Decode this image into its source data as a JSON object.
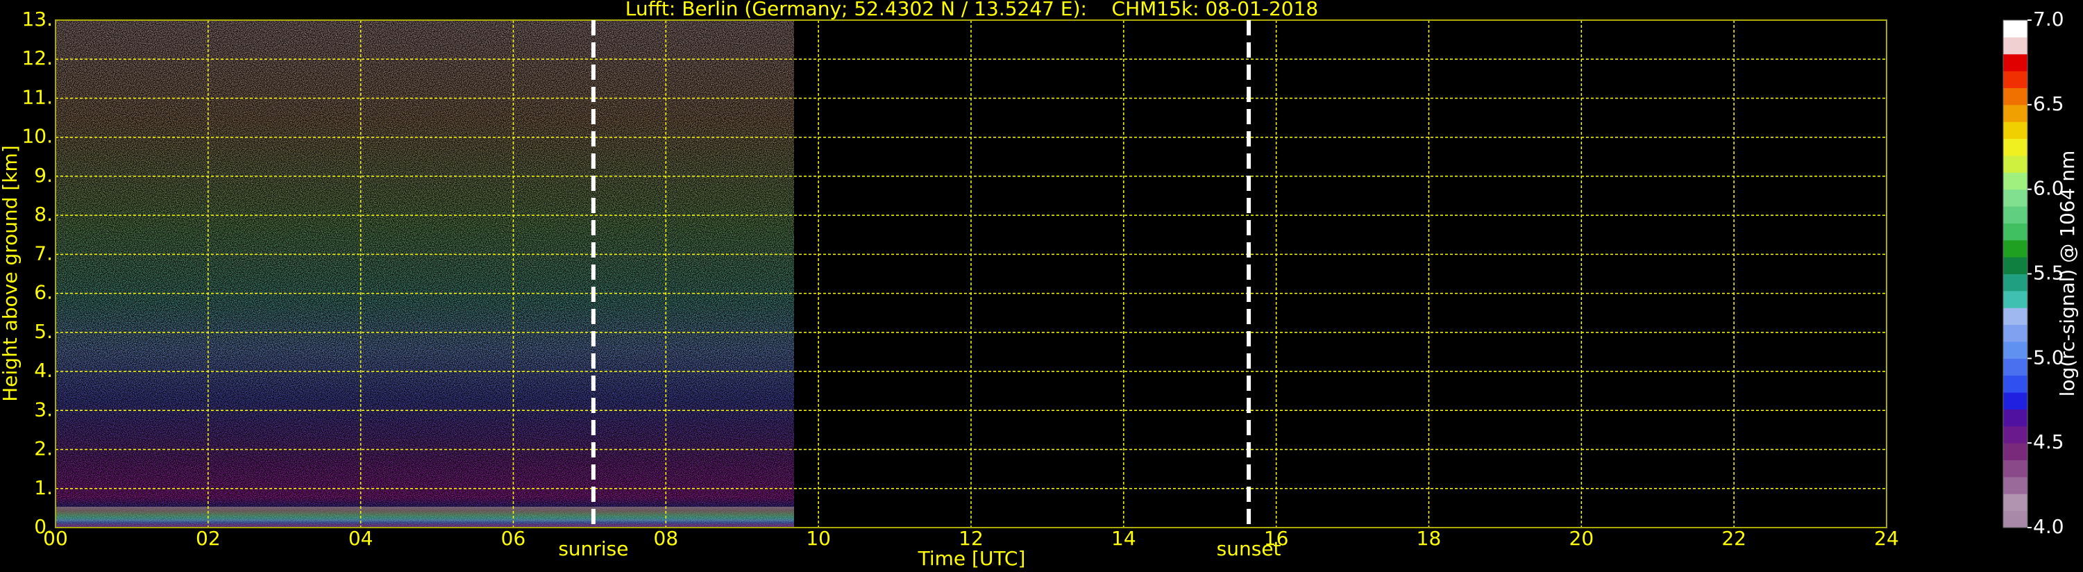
{
  "chart_data": {
    "type": "heatmap",
    "title": "Lufft: Berlin (Germany; 52.4302 N / 13.5247 E):    CHM15k: 08-01-2018",
    "xlabel": "Time [UTC]",
    "ylabel": "Height above ground [km]",
    "xlim": [
      0,
      24
    ],
    "xticks": [
      {
        "value": 0,
        "label": "00"
      },
      {
        "value": 2,
        "label": "02"
      },
      {
        "value": 4,
        "label": "04"
      },
      {
        "value": 6,
        "label": "06"
      },
      {
        "value": 8,
        "label": "08"
      },
      10,
      12,
      14,
      16,
      18,
      20,
      22,
      24
    ],
    "ylim": [
      0,
      13
    ],
    "yticks": [
      {
        "value": 0,
        "label": "0."
      },
      {
        "value": 1,
        "label": "1."
      },
      {
        "value": 2,
        "label": "2."
      },
      {
        "value": 3,
        "label": "3."
      },
      {
        "value": 4,
        "label": "4."
      },
      {
        "value": 5,
        "label": "5."
      },
      {
        "value": 6,
        "label": "6."
      },
      {
        "value": 7,
        "label": "7."
      },
      {
        "value": 8,
        "label": "8."
      },
      {
        "value": 9,
        "label": "9."
      },
      {
        "value": 10,
        "label": "10."
      },
      {
        "value": 11,
        "label": "11."
      },
      {
        "value": 12,
        "label": "12."
      },
      {
        "value": 13,
        "label": "13."
      }
    ],
    "grid": true,
    "data_range": [
      0,
      9.68
    ],
    "annotations": [
      {
        "text": "sunrise",
        "x": 7.05
      },
      {
        "text": "sunset",
        "x": 15.64
      }
    ],
    "colorbar": {
      "label": "log(rc-signal) @ 1064 nm",
      "lim": [
        4,
        7
      ],
      "ticks": [
        {
          "value": 4,
          "label": "4.0"
        },
        4.5,
        {
          "value": 5,
          "label": "5.0"
        },
        5.5,
        {
          "value": 6,
          "label": "6.0"
        },
        6.5,
        {
          "value": 7,
          "label": "7.0"
        }
      ],
      "colors": [
        "#a88aa8",
        "#b094b0",
        "#9a6a9a",
        "#8a4a8a",
        "#7a2a7a",
        "#6a1a8a",
        "#5010a0",
        "#2020e0",
        "#3050f0",
        "#4a70f0",
        "#6090f0",
        "#80a0f0",
        "#a0b8f0",
        "#40c0b0",
        "#20a080",
        "#108040",
        "#20a020",
        "#40c060",
        "#60d080",
        "#80e090",
        "#a0f080",
        "#d0f040",
        "#f0f020",
        "#f0d000",
        "#f0a000",
        "#f07000",
        "#f03000",
        "#e00000",
        "#f0d0d0",
        "#ffffff"
      ]
    }
  }
}
